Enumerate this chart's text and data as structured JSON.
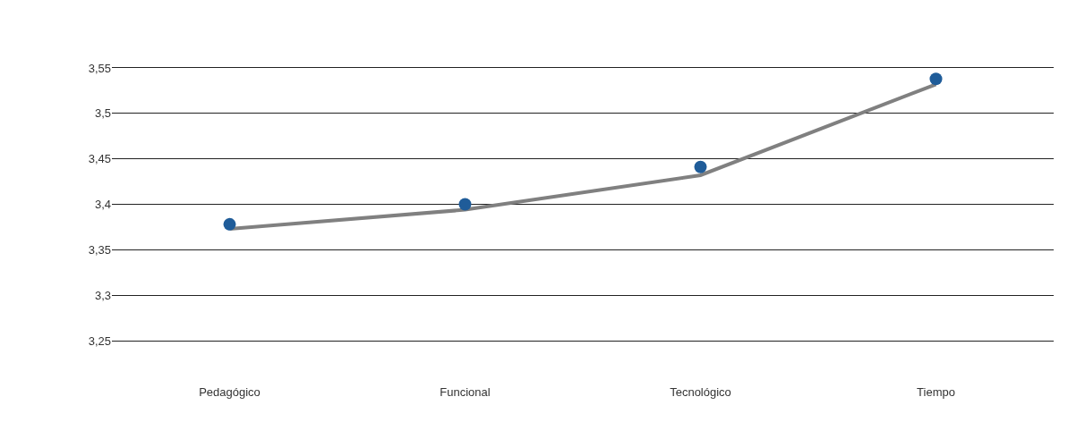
{
  "chart_data": {
    "type": "line",
    "categories": [
      "Pedagógico",
      "Funcional",
      "Tecnológico",
      "Tiempo"
    ],
    "series": [
      {
        "color": "#808080",
        "marker": "none",
        "values": [
          3.373,
          3.394,
          3.432,
          3.532
        ]
      },
      {
        "type": "scatter",
        "color": "#1f5c99",
        "marker": "circle",
        "values": [
          3.378,
          3.4,
          3.441,
          3.538
        ]
      }
    ],
    "ylim": [
      3.25,
      3.55
    ],
    "yticks": [
      {
        "value": 3.25,
        "label": "3,25"
      },
      {
        "value": 3.3,
        "label": "3,3"
      },
      {
        "value": 3.35,
        "label": "3,35"
      },
      {
        "value": 3.4,
        "label": "3,4"
      },
      {
        "value": 3.45,
        "label": "3,45"
      },
      {
        "value": 3.5,
        "label": "3,5"
      },
      {
        "value": 3.55,
        "label": "3,55"
      }
    ],
    "grid": "y"
  }
}
